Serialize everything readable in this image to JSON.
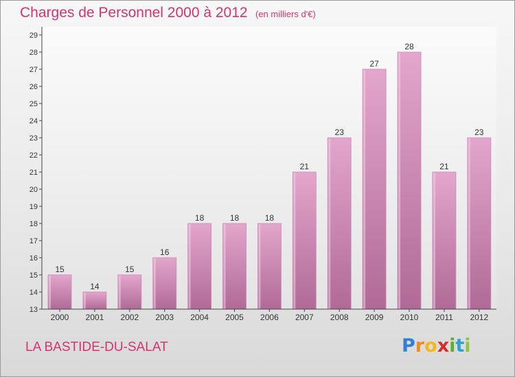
{
  "header": {
    "title": "Charges de Personnel 2000 à 2012",
    "unit": "(en milliers d'€)"
  },
  "footer": {
    "commune": "LA BASTIDE-DU-SALAT",
    "brand_letters": [
      "P",
      "r",
      "o",
      "x",
      "i",
      "t",
      "i"
    ],
    "brand_colors": [
      "#2f7fd6",
      "#f08a1c",
      "#f3b81b",
      "#d62c2c",
      "#5fae2e",
      "#2f9fd6",
      "#8cc63f"
    ]
  },
  "colors": {
    "accent": "#d2346f",
    "bar_top": "#e3a6cc",
    "bar_bottom": "#b06a97"
  },
  "chart_data": {
    "type": "bar",
    "title": "Charges de Personnel 2000 à 2012",
    "subtitle": "(en milliers d'€)",
    "xlabel": "",
    "ylabel": "",
    "categories": [
      "2000",
      "2001",
      "2002",
      "2003",
      "2004",
      "2005",
      "2006",
      "2007",
      "2008",
      "2009",
      "2010",
      "2011",
      "2012"
    ],
    "values": [
      15,
      14,
      15,
      16,
      18,
      18,
      18,
      21,
      23,
      27,
      28,
      21,
      23
    ],
    "ylim": [
      13,
      29
    ],
    "yticks": [
      13,
      14,
      15,
      16,
      17,
      18,
      19,
      20,
      21,
      22,
      23,
      24,
      25,
      26,
      27,
      28,
      29
    ],
    "grid": false,
    "legend": "none"
  }
}
